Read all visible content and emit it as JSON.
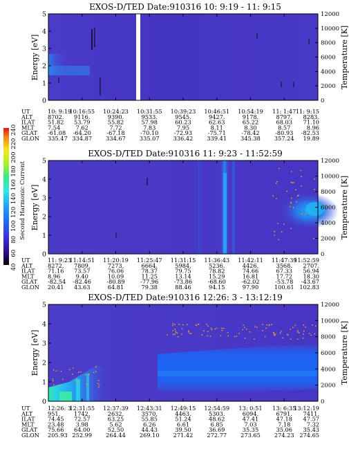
{
  "panels": [
    {
      "title": "EXOS-D/TED   Date:910316  10: 9:19 - 11: 9:15",
      "ylabel": "Energy [eV]",
      "y2label": "Temperature [K]",
      "yticks": [
        "0",
        "1",
        "2",
        "3",
        "4",
        "5"
      ],
      "y2ticks": [
        "0",
        "2000",
        "4000",
        "6000",
        "8000",
        "10000",
        "12000"
      ],
      "ephemeris": {
        "UT": [
          "10: 9:19",
          "10:16:55",
          "10:24:23",
          "10:31:55",
          "10:39:23",
          "10:46:51",
          "10:54:19",
          "11: 1:47",
          "11: 9:15"
        ],
        "ALT": [
          "8702.",
          "9116.",
          "9390.",
          "9533.",
          "9545.",
          "9427.",
          "9178.",
          "8797.",
          "8283."
        ],
        "ILAT": [
          "51.82",
          "53.79",
          "55.82",
          "57.98",
          "60.23",
          "62.63",
          "65.22",
          "68.03",
          "71.10"
        ],
        "MLT": [
          "7.54",
          "7.62",
          "7.72",
          "7.83",
          "7.95",
          "8.11",
          "8.30",
          "8.57",
          "8.96"
        ],
        "GLAT": [
          "-61.08",
          "-64.20",
          "-67.18",
          "-70.10",
          "-72.93",
          "-75.71",
          "-78.42",
          "-80.93",
          "-82.53"
        ],
        "GLON": [
          "335.47",
          "334.87",
          "334.67",
          "335.07",
          "336.42",
          "339.41",
          "345.38",
          "357.24",
          "19.89"
        ]
      }
    },
    {
      "title": "EXOS-D/TED   Date:910316  11: 9:23 - 11:52:59",
      "ylabel": "Energy [eV]",
      "y2label": "Temperature [K]",
      "yticks": [
        "0",
        "1",
        "2",
        "3",
        "4",
        "5"
      ],
      "y2ticks": [
        "0",
        "2000",
        "4000",
        "6000",
        "8000",
        "10000",
        "12000"
      ],
      "ephemeris": {
        "UT": [
          "11: 9:23",
          "11:14:51",
          "11:20:19",
          "11:25:47",
          "11:31:15",
          "11:36:43",
          "11:42:11",
          "11:47:39",
          "11:52:59"
        ],
        "ALT": [
          "8272.",
          "7809.",
          "7273.",
          "6664.",
          "5984.",
          "5236.",
          "4426.",
          "3568.",
          "2707."
        ],
        "ILAT": [
          "71.16",
          "73.57",
          "76.06",
          "78.37",
          "79.75",
          "78.82",
          "74.66",
          "67.33",
          "56.94"
        ],
        "MLT": [
          "8.96",
          "9.40",
          "10.09",
          "11.25",
          "13.14",
          "15.29",
          "16.81",
          "17.72",
          "18.30"
        ],
        "GLAT": [
          "-82.54",
          "-82.46",
          "-80.89",
          "-77.96",
          "-73.86",
          "-68.60",
          "-62.02",
          "-53.78",
          "-43.67"
        ],
        "GLON": [
          "20.41",
          "43.63",
          "64.81",
          "79.38",
          "88.46",
          "94.15",
          "97.90",
          "100.61",
          "102.83"
        ]
      }
    },
    {
      "title": "EXOS-D/TED   Date:910316  12:26: 3 - 13:12:19",
      "ylabel": "Energy [eV]",
      "y2label": "Temperature [K]",
      "yticks": [
        "0",
        "1",
        "2",
        "3",
        "4",
        "5"
      ],
      "y2ticks": [
        "0",
        "2000",
        "4000",
        "6000",
        "8000",
        "10000",
        "12000"
      ],
      "ephemeris": {
        "UT": [
          "12:26: 3",
          "12:31:55",
          "12:37:39",
          "12:43:31",
          "12:49:15",
          "12:54:59",
          "13: 0:51",
          "13: 6:35",
          "13:12:19"
        ],
        "ALT": [
          "951.",
          "1742.",
          "2632.",
          "3570.",
          "4463.",
          "5303.",
          "6094.",
          "6791.",
          "7411."
        ],
        "ILAT": [
          "74.45",
          "72.57",
          "63.25",
          "55.85",
          "51.24",
          "48.62",
          "47.41",
          "47.18",
          "47.57"
        ],
        "MLT": [
          "23.48",
          "3.98",
          "5.62",
          "6.26",
          "6.61",
          "6.85",
          "7.03",
          "7.18",
          "7.32"
        ],
        "GLAT": [
          "75.66",
          "64.00",
          "52.50",
          "44.43",
          "39.50",
          "36.69",
          "35.35",
          "35.06",
          "35.43"
        ],
        "GLON": [
          "205.93",
          "252.99",
          "264.44",
          "269.10",
          "271.42",
          "272.77",
          "273.65",
          "274.23",
          "274.65"
        ]
      }
    }
  ],
  "colorbar": {
    "label": "Second Harmonic Current",
    "ticks": [
      "40",
      "60",
      "80",
      "100",
      "120",
      "140",
      "160",
      "180",
      "200",
      "220",
      "240"
    ]
  },
  "chart_data": {
    "type": "heatmap",
    "description_of_axes": "Energy (eV, left) vs UT; electron temperature (K, right axis) overlaid as dots",
    "ylim": [
      0,
      5
    ],
    "y2lim": [
      0,
      12000
    ],
    "colorbar_range": [
      40,
      240
    ],
    "grid": false,
    "legend_placement": "left colorbar"
  }
}
